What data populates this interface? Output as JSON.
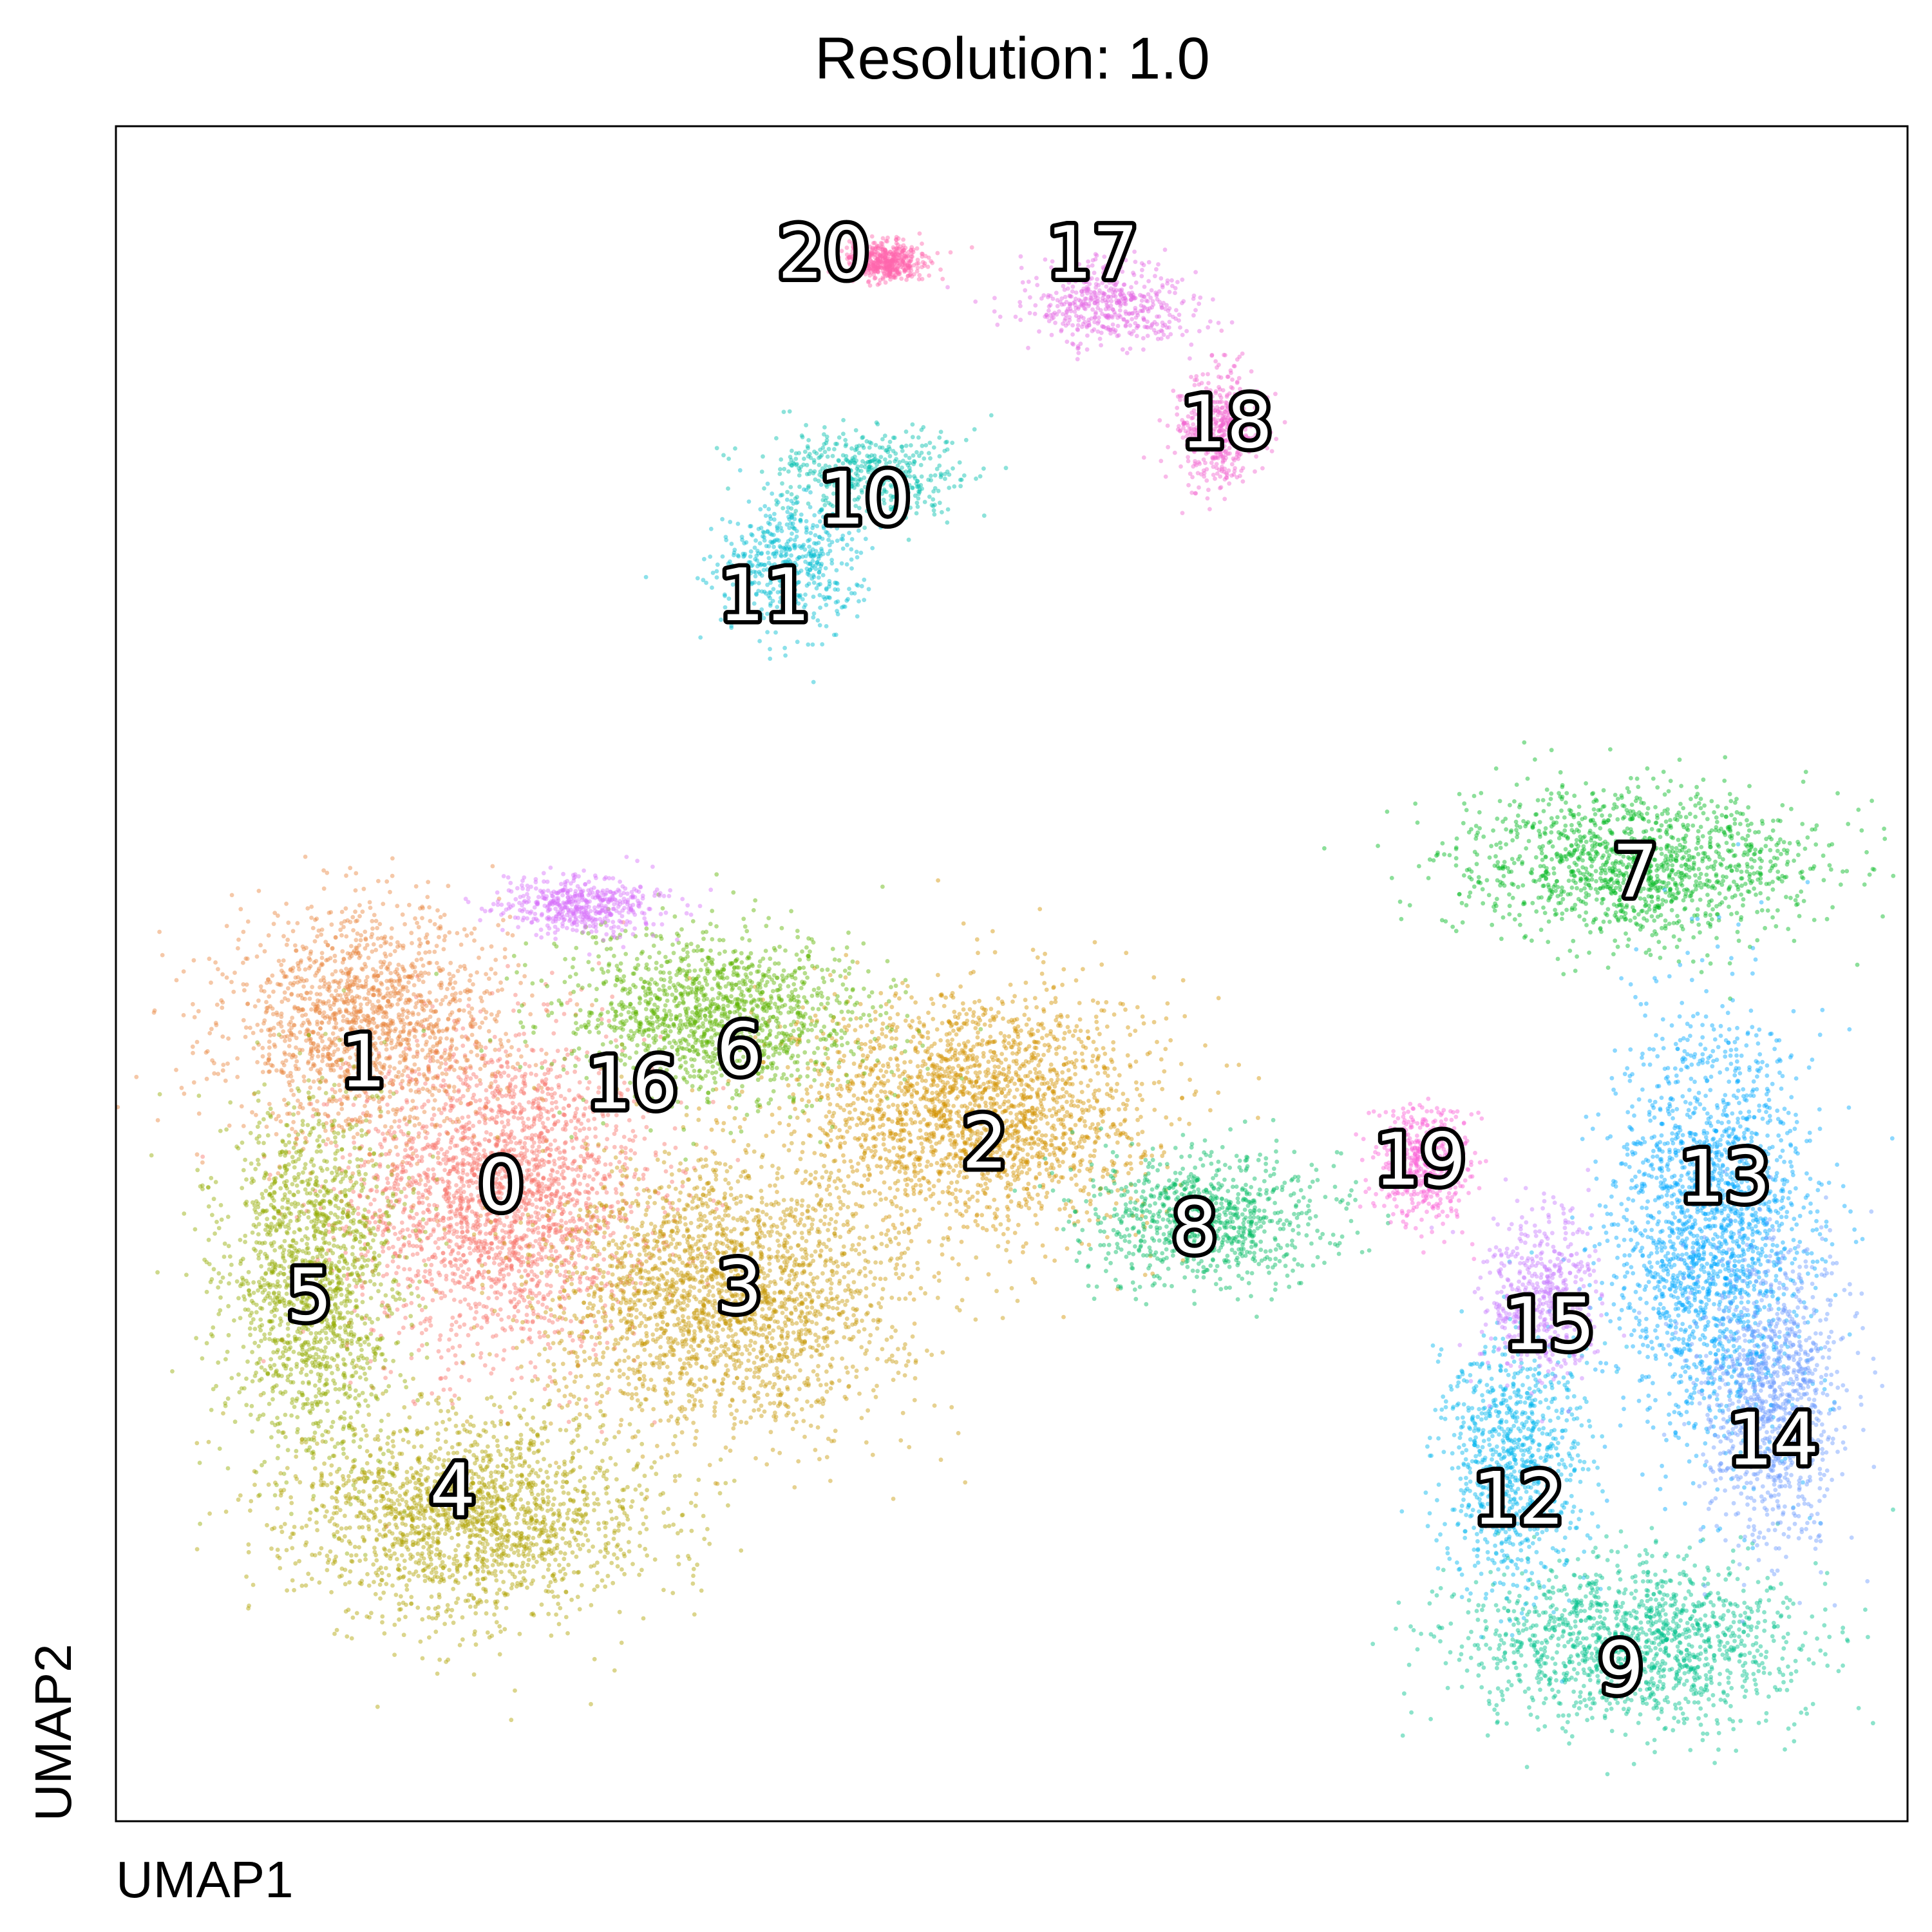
{
  "chart_data": {
    "type": "scatter",
    "title": "Resolution: 1.0",
    "xlabel": "UMAP1",
    "ylabel": "UMAP2",
    "xlim": [
      0,
      100
    ],
    "ylim": [
      0,
      100
    ],
    "ticks": "none",
    "grid": false,
    "legend": "none",
    "clusters": [
      {
        "label": "0",
        "color": "#F8766D",
        "center": [
          21.5,
          37.0
        ],
        "spread": [
          7.5,
          8.5
        ]
      },
      {
        "label": "1",
        "color": "#E8853F",
        "center": [
          14.0,
          47.0
        ],
        "spread": [
          7.0,
          6.0
        ]
      },
      {
        "label": "2",
        "color": "#D39200",
        "center": [
          48.0,
          42.0
        ],
        "spread": [
          9.0,
          6.5
        ]
      },
      {
        "label": "3",
        "color": "#C79A08",
        "center": [
          34.0,
          31.0
        ],
        "spread": [
          9.0,
          7.0
        ]
      },
      {
        "label": "4",
        "color": "#AFA100",
        "center": [
          20.0,
          18.0
        ],
        "spread": [
          9.0,
          5.5
        ]
      },
      {
        "label": "5",
        "color": "#93AA00",
        "center": [
          11.0,
          32.0
        ],
        "spread": [
          4.5,
          9.5
        ]
      },
      {
        "label": "6",
        "color": "#5EB300",
        "center": [
          33.5,
          47.5
        ],
        "spread": [
          8.0,
          4.5
        ]
      },
      {
        "label": "7",
        "color": "#00B81F",
        "center": [
          85.0,
          56.5
        ],
        "spread": [
          9.0,
          4.0
        ]
      },
      {
        "label": "8",
        "color": "#00BB62",
        "center": [
          61.0,
          35.5
        ],
        "spread": [
          6.5,
          3.5
        ]
      },
      {
        "label": "9",
        "color": "#00C08B",
        "center": [
          84.5,
          10.5
        ],
        "spread": [
          8.5,
          4.5
        ]
      },
      {
        "label": "10",
        "color": "#00BFAD",
        "center": [
          42.0,
          79.5
        ],
        "spread": [
          5.0,
          2.5
        ]
      },
      {
        "label": "11",
        "color": "#00BCD0",
        "center": [
          37.5,
          74.0
        ],
        "spread": [
          3.5,
          3.5
        ]
      },
      {
        "label": "12",
        "color": "#00B5EE",
        "center": [
          78.0,
          21.0
        ],
        "spread": [
          3.5,
          7.0
        ]
      },
      {
        "label": "13",
        "color": "#00A9FF",
        "center": [
          89.0,
          35.0
        ],
        "spread": [
          5.0,
          11.0
        ]
      },
      {
        "label": "14",
        "color": "#6D9CFF",
        "center": [
          92.5,
          25.0
        ],
        "spread": [
          3.5,
          8.0
        ]
      },
      {
        "label": "15",
        "color": "#C77CFF",
        "center": [
          79.5,
          31.0
        ],
        "spread": [
          3.0,
          4.5
        ]
      },
      {
        "label": "16",
        "color": "#D670FA",
        "center": [
          26.0,
          54.0
        ],
        "spread": [
          4.0,
          1.5
        ]
      },
      {
        "label": "17",
        "color": "#E56BE4",
        "center": [
          55.5,
          89.5
        ],
        "spread": [
          4.0,
          2.5
        ]
      },
      {
        "label": "18",
        "color": "#F266D0",
        "center": [
          61.5,
          82.0
        ],
        "spread": [
          2.0,
          3.0
        ]
      },
      {
        "label": "19",
        "color": "#FB61D7",
        "center": [
          73.0,
          38.5
        ],
        "spread": [
          2.5,
          3.0
        ]
      },
      {
        "label": "20",
        "color": "#FF65AC",
        "center": [
          43.0,
          92.0
        ],
        "spread": [
          2.0,
          1.0
        ]
      }
    ],
    "label_positions": [
      {
        "label": "0",
        "x": 21.5,
        "y": 37.5
      },
      {
        "label": "1",
        "x": 13.8,
        "y": 44.8
      },
      {
        "label": "2",
        "x": 48.5,
        "y": 40.0
      },
      {
        "label": "3",
        "x": 34.8,
        "y": 31.5
      },
      {
        "label": "4",
        "x": 18.8,
        "y": 19.5
      },
      {
        "label": "5",
        "x": 10.8,
        "y": 31.0
      },
      {
        "label": "6",
        "x": 34.8,
        "y": 45.5
      },
      {
        "label": "7",
        "x": 84.8,
        "y": 56.0
      },
      {
        "label": "8",
        "x": 60.2,
        "y": 35.0
      },
      {
        "label": "9",
        "x": 84.0,
        "y": 9.0
      },
      {
        "label": "10",
        "x": 41.8,
        "y": 78.0
      },
      {
        "label": "11",
        "x": 36.2,
        "y": 72.3
      },
      {
        "label": "12",
        "x": 78.3,
        "y": 19.0
      },
      {
        "label": "13",
        "x": 89.8,
        "y": 38.0
      },
      {
        "label": "14",
        "x": 92.5,
        "y": 22.5
      },
      {
        "label": "15",
        "x": 80.0,
        "y": 29.3
      },
      {
        "label": "16",
        "x": 28.8,
        "y": 43.5
      },
      {
        "label": "17",
        "x": 54.5,
        "y": 92.5
      },
      {
        "label": "18",
        "x": 62.0,
        "y": 82.5
      },
      {
        "label": "19",
        "x": 72.8,
        "y": 39.0
      },
      {
        "label": "20",
        "x": 39.5,
        "y": 92.5
      }
    ]
  }
}
